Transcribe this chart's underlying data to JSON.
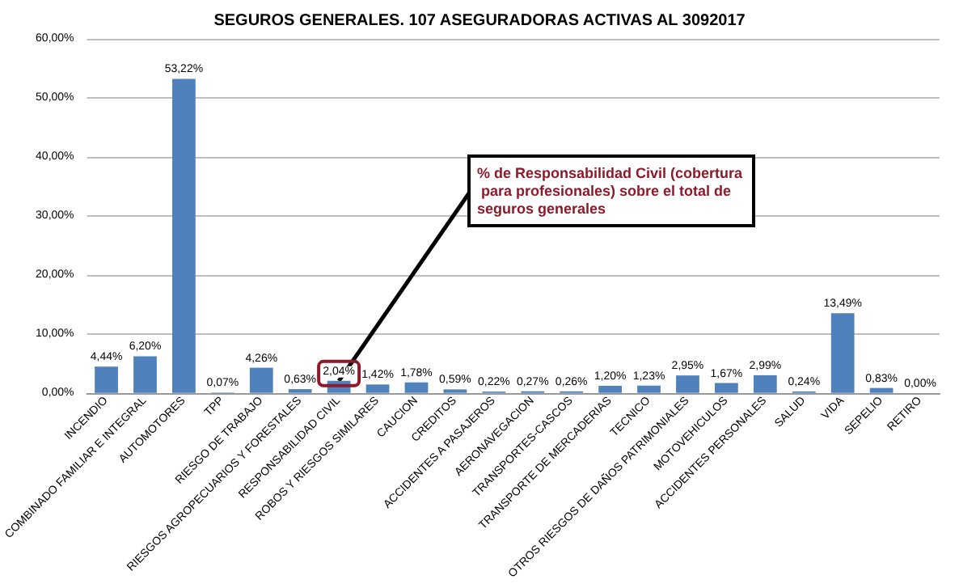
{
  "chart_data": {
    "type": "bar",
    "title": "SEGUROS GENERALES. 107 ASEGURADORAS ACTIVAS AL 3092017",
    "categories": [
      "INCENDIO",
      "COMBINADO FAMILIAR E INTEGRAL",
      "AUTOMOTORES",
      "TPP",
      "RIESGO DE TRABAJO",
      "RIESGOS AGROPECUARIOS Y FORESTALES",
      "RESPONSABILIDAD CIVIL",
      "ROBOS Y RIESGOS SIMILARES",
      "CAUCION",
      "CREDITOS",
      "ACCIDENTES A PASAJEROS",
      "AERONAVEGACION",
      "TRANSPORTES-CASCOS",
      "TRANSPORTE DE MERCADERIAS",
      "TECNICO",
      "OTROS RIESGOS DE DAÑOS PATRIMONIALES",
      "MOTOVEHICULOS",
      "ACCIDENTES PERSONALES",
      "SALUD",
      "VIDA",
      "SEPELIO",
      "RETIRO"
    ],
    "values": [
      4.44,
      6.2,
      53.22,
      0.07,
      4.26,
      0.63,
      2.04,
      1.42,
      1.78,
      0.59,
      0.22,
      0.27,
      0.26,
      1.2,
      1.23,
      2.95,
      1.67,
      2.99,
      0.24,
      13.49,
      0.83,
      0.0
    ],
    "value_labels": [
      "4,44%",
      "6,20%",
      "53,22%",
      "0,07%",
      "4,26%",
      "0,63%",
      "2,04%",
      "1,42%",
      "1,78%",
      "0,59%",
      "0,22%",
      "0,27%",
      "0,26%",
      "1,20%",
      "1,23%",
      "2,95%",
      "1,67%",
      "2,99%",
      "0,24%",
      "13,49%",
      "0,83%",
      "0,00%"
    ],
    "color": "#4f81bd",
    "ylim": [
      0,
      60
    ],
    "yticks": [
      {
        "value": 0,
        "label": "0,00%"
      },
      {
        "value": 10,
        "label": "10,00%"
      },
      {
        "value": 20,
        "label": "20,00%"
      },
      {
        "value": 30,
        "label": "30,00%"
      },
      {
        "value": 40,
        "label": "40,00%"
      },
      {
        "value": 50,
        "label": "50,00%"
      },
      {
        "value": 60,
        "label": "60,00%"
      }
    ],
    "grid": "y",
    "annotations": [
      {
        "text": "% de Responsabilidad Civil (cobertura para profesionales) sobre el total de seguros generales",
        "x": "RESPONSABILIDAD CIVIL",
        "y": 2.04
      }
    ]
  }
}
